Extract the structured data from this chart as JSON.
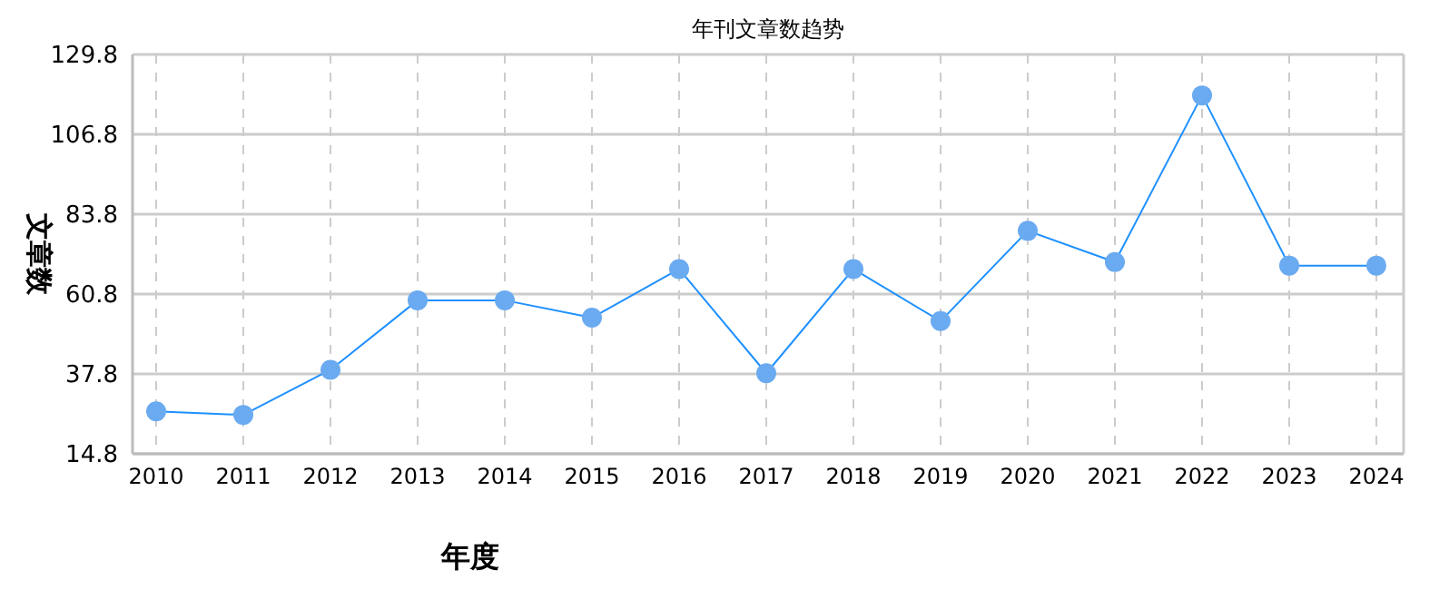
{
  "chart_data": {
    "type": "line",
    "title": "年刊文章数趋势",
    "xlabel": "年度",
    "ylabel": "文章数",
    "categories": [
      "2010",
      "2011",
      "2012",
      "2013",
      "2014",
      "2015",
      "2016",
      "2017",
      "2018",
      "2019",
      "2020",
      "2021",
      "2022",
      "2023",
      "2024"
    ],
    "series": [
      {
        "color": "#1e90ff",
        "values": [
          27,
          26,
          39,
          59,
          59,
          54,
          68,
          38,
          68,
          53,
          79,
          70,
          118,
          69,
          69
        ]
      }
    ],
    "ylim": [
      14.8,
      129.8
    ],
    "yticks": [
      14.8,
      37.8,
      60.8,
      83.8,
      106.8,
      129.8
    ],
    "grid": true,
    "marker": "circle",
    "line_style": "solid",
    "legend": false
  }
}
